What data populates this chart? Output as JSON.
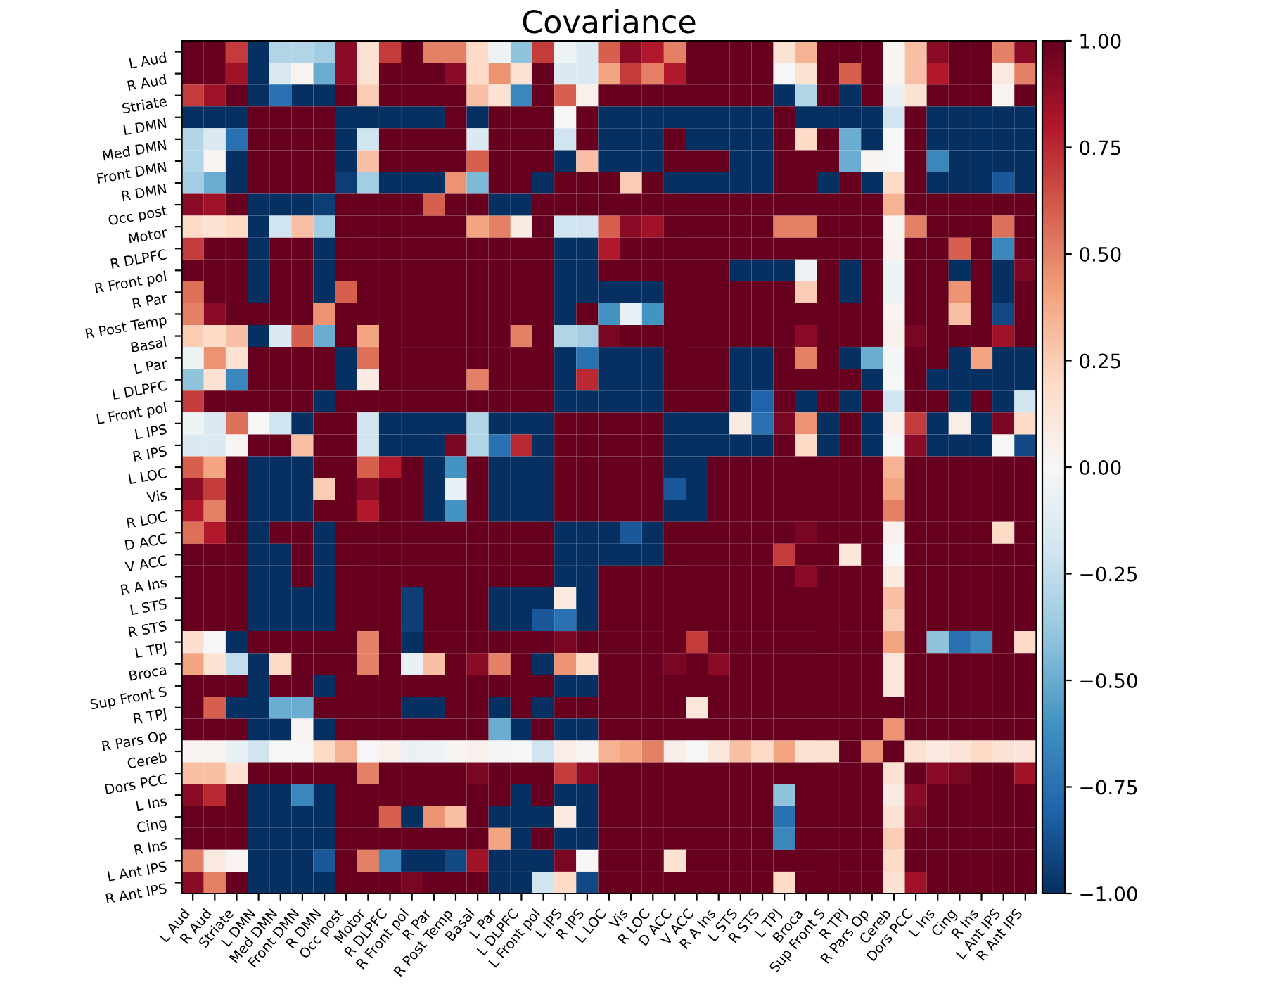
{
  "chart_data": {
    "type": "heatmap",
    "title": "Covariance",
    "categories": [
      "L Aud",
      "R Aud",
      "Striate",
      "L DMN",
      "Med DMN",
      "Front DMN",
      "R DMN",
      "Occ post",
      "Motor",
      "R DLPFC",
      "R Front pol",
      "R Par",
      "R Post Temp",
      "Basal",
      "L Par",
      "L DLPFC",
      "L Front pol",
      "L IPS",
      "R IPS",
      "L LOC",
      "Vis",
      "R LOC",
      "D ACC",
      "V ACC",
      "R A Ins",
      "L STS",
      "R STS",
      "L TPJ",
      "Broca",
      "Sup Front S",
      "R TPJ",
      "R Pars Op",
      "Cereb",
      "Dors PCC",
      "L Ins",
      "Cing",
      "R Ins",
      "L Ant IPS",
      "R Ant IPS"
    ],
    "y_categories": [
      "L Aud",
      "R Aud",
      "Striate",
      "L DMN",
      "Med DMN",
      "Front DMN",
      "R DMN",
      "Occ post",
      "Motor",
      "R DLPFC",
      "R Front pol",
      "R Par",
      "R Post Temp",
      "Basal",
      "L Par",
      "L DLPFC",
      "L Front pol",
      "L IPS",
      "R IPS",
      "L LOC",
      "Vis",
      "R LOC",
      "D ACC",
      "V ACC",
      "R A Ins",
      "L STS",
      "R STS",
      "L TPJ",
      "Broca",
      "Sup Front S",
      "R TPJ",
      "R Pars Op",
      "Cereb",
      "Dors PCC",
      "L Ins",
      "Cing",
      "R Ins",
      "L Ant IPS",
      "R Ant IPS"
    ],
    "cells": [
      [
        1,
        1,
        0.7,
        -1,
        -0.3,
        -0.3,
        -0.35,
        0.9,
        0.15,
        0.7,
        1,
        0.5,
        0.5,
        0.2,
        -0.05,
        -0.4,
        0.7,
        -0.05,
        -0.15,
        0.6,
        0.9,
        0.8,
        0.5,
        1,
        1,
        1,
        1,
        0.15,
        0.35,
        1,
        1,
        1,
        0.02,
        0.3,
        0.9,
        1,
        1,
        0.5,
        0.9
      ],
      [
        1,
        1,
        0.85,
        -1,
        -0.15,
        0.03,
        -0.5,
        0.9,
        0.15,
        1,
        1,
        1,
        0.9,
        0.2,
        0.45,
        0.15,
        1,
        -0.15,
        -0.15,
        0.4,
        0.7,
        0.5,
        0.8,
        1,
        1,
        1,
        1,
        0,
        0.15,
        1,
        0.6,
        1,
        0.02,
        0.3,
        0.8,
        1,
        1,
        0.1,
        0.5
      ],
      [
        0.7,
        0.85,
        1,
        -1,
        -0.75,
        -1,
        -1,
        1,
        0.25,
        1,
        1,
        1,
        1,
        0.3,
        0.15,
        -0.65,
        1,
        0.6,
        0.05,
        1,
        1,
        1,
        1,
        1,
        1,
        1,
        1,
        -1,
        -0.3,
        1,
        -1,
        1,
        -0.07,
        0.15,
        1,
        1,
        1,
        0.03,
        1
      ],
      [
        -1,
        -1,
        -1,
        1,
        1,
        1,
        1,
        -1,
        -1,
        -1,
        -1,
        -1,
        1,
        -1,
        1,
        1,
        1,
        0,
        1,
        -1,
        -1,
        -1,
        -1,
        -1,
        -1,
        -1,
        -1,
        1,
        -1,
        -1,
        -1,
        -1,
        -0.2,
        1,
        -1,
        -1,
        -1,
        -1,
        -1
      ],
      [
        -0.3,
        -0.15,
        -0.75,
        1,
        1,
        1,
        1,
        -1,
        -0.2,
        1,
        1,
        1,
        1,
        -0.15,
        1,
        1,
        1,
        -0.2,
        1,
        -1,
        -1,
        -1,
        1,
        -1,
        -1,
        -1,
        -1,
        1,
        0.2,
        1,
        -0.5,
        -1,
        0,
        1,
        -1,
        -1,
        -1,
        -1,
        -1
      ],
      [
        -0.3,
        0.03,
        -1,
        1,
        1,
        1,
        1,
        -1,
        0.3,
        1,
        1,
        1,
        1,
        0.6,
        1,
        1,
        1,
        -1,
        0.3,
        -1,
        -1,
        -1,
        1,
        1,
        1,
        -1,
        -1,
        1,
        1,
        1,
        -0.5,
        0.02,
        0,
        1,
        -0.65,
        -1,
        -1,
        -1,
        -1
      ],
      [
        -0.35,
        -0.5,
        -1,
        1,
        1,
        1,
        1,
        -0.95,
        -0.35,
        -1,
        -1,
        -1,
        0.45,
        -0.45,
        1,
        1,
        -1,
        1,
        1,
        1,
        0.25,
        1,
        -1,
        -1,
        -1,
        -1,
        -1,
        1,
        1,
        -1,
        1,
        -1,
        0.2,
        1,
        -1,
        -1,
        -1,
        -0.85,
        -1
      ],
      [
        0.9,
        0.85,
        1,
        -1,
        -1,
        -1,
        -0.95,
        1,
        1,
        1,
        1,
        0.6,
        1,
        1,
        -1,
        -1,
        1,
        1,
        1,
        1,
        1,
        1,
        1,
        1,
        1,
        1,
        1,
        1,
        1,
        1,
        1,
        1,
        0.35,
        1,
        1,
        1,
        1,
        1,
        1
      ],
      [
        0.2,
        0.15,
        0.2,
        -1,
        -0.2,
        0.3,
        -0.35,
        1,
        1,
        1,
        1,
        1,
        1,
        0.4,
        0.5,
        0.08,
        1,
        -0.2,
        -0.2,
        0.6,
        0.9,
        0.85,
        1,
        1,
        1,
        1,
        1,
        0.5,
        0.5,
        1,
        1,
        1,
        0.03,
        0.5,
        1,
        1,
        1,
        0.55,
        1
      ],
      [
        0.7,
        1,
        1,
        -1,
        1,
        1,
        -1,
        1,
        1,
        1,
        1,
        1,
        1,
        1,
        1,
        1,
        1,
        -1,
        -1,
        0.8,
        1,
        1,
        1,
        1,
        1,
        1,
        1,
        1,
        1,
        1,
        1,
        1,
        0.05,
        1,
        1,
        0.6,
        1,
        -0.65,
        1
      ],
      [
        1,
        1,
        1,
        -1,
        1,
        1,
        -1,
        1,
        1,
        1,
        1,
        1,
        1,
        1,
        1,
        1,
        1,
        -1,
        -1,
        1,
        1,
        1,
        1,
        1,
        1,
        -1,
        -1,
        -1,
        -0.05,
        1,
        -1,
        1,
        -0.05,
        1,
        1,
        -1,
        1,
        -1,
        0.95
      ],
      [
        0.55,
        1,
        1,
        -1,
        1,
        1,
        -1,
        0.6,
        1,
        1,
        1,
        1,
        1,
        1,
        1,
        1,
        1,
        -1,
        -1,
        -1,
        -1,
        -1,
        1,
        1,
        1,
        1,
        1,
        1,
        0.25,
        1,
        -1,
        1,
        -0.05,
        1,
        1,
        0.45,
        1,
        -1,
        1
      ],
      [
        0.5,
        0.9,
        1,
        1,
        1,
        1,
        0.45,
        1,
        1,
        1,
        1,
        1,
        1,
        1,
        1,
        1,
        1,
        -1,
        1,
        -0.6,
        -0.08,
        -0.6,
        1,
        1,
        1,
        1,
        1,
        1,
        1,
        1,
        1,
        1,
        0.03,
        1,
        1,
        0.3,
        1,
        -0.9,
        1
      ],
      [
        0.25,
        0.2,
        0.3,
        -1,
        -0.15,
        0.6,
        -0.5,
        1,
        0.4,
        1,
        1,
        1,
        1,
        1,
        1,
        0.5,
        1,
        -0.3,
        -0.35,
        0.95,
        1,
        1,
        1,
        1,
        1,
        1,
        1,
        1,
        0.9,
        1,
        1,
        1,
        0.05,
        0.95,
        1,
        1,
        1,
        0.85,
        1
      ],
      [
        -0.05,
        0.45,
        0.15,
        1,
        1,
        1,
        1,
        -1,
        0.55,
        1,
        1,
        1,
        1,
        1,
        1,
        1,
        1,
        -1,
        -0.75,
        -1,
        -1,
        -1,
        1,
        1,
        1,
        -1,
        -1,
        1,
        0.5,
        1,
        -1,
        -0.5,
        -0.02,
        1,
        1,
        -1,
        0.4,
        -1,
        -1
      ],
      [
        -0.4,
        0.15,
        -0.65,
        1,
        1,
        1,
        1,
        -1,
        0.08,
        1,
        1,
        1,
        1,
        0.5,
        1,
        1,
        1,
        -1,
        0.75,
        -1,
        -1,
        -1,
        1,
        1,
        1,
        -1,
        -1,
        1,
        1,
        1,
        1,
        -1,
        0,
        1,
        -1,
        -1,
        -1,
        -1,
        -1
      ],
      [
        0.7,
        1,
        1,
        1,
        1,
        1,
        -1,
        1,
        1,
        1,
        1,
        1,
        1,
        1,
        1,
        1,
        1,
        -1,
        -1,
        -1,
        -1,
        -1,
        1,
        1,
        1,
        -1,
        -0.8,
        1,
        -1,
        1,
        -1,
        1,
        -0.2,
        1,
        1,
        -1,
        1,
        -1,
        -0.2
      ],
      [
        -0.05,
        -0.15,
        0.55,
        0,
        -0.2,
        -1,
        1,
        1,
        -0.2,
        -1,
        -1,
        -1,
        -1,
        -0.3,
        -1,
        -1,
        -1,
        1,
        1,
        1,
        1,
        1,
        -1,
        -1,
        -1,
        0.08,
        -0.75,
        0.95,
        0.45,
        -1,
        1,
        -1,
        0.05,
        0.7,
        -1,
        0.07,
        -1,
        0.95,
        0.2
      ],
      [
        -0.15,
        -0.15,
        0.02,
        1,
        1,
        0.3,
        1,
        1,
        -0.2,
        -1,
        -1,
        -1,
        0.95,
        -0.3,
        -0.75,
        0.75,
        -1,
        1,
        1,
        1,
        1,
        1,
        -1,
        -1,
        -1,
        -1,
        -1,
        1,
        0.2,
        -1,
        1,
        -1,
        0,
        0.9,
        -1,
        -1,
        -1,
        0,
        -0.9
      ],
      [
        0.6,
        0.4,
        1,
        -1,
        -1,
        -1,
        1,
        1,
        0.6,
        0.8,
        1,
        -1,
        -0.6,
        1,
        -1,
        -1,
        -1,
        1,
        1,
        1,
        1,
        1,
        -1,
        -1,
        1,
        1,
        1,
        1,
        1,
        1,
        1,
        1,
        0.35,
        1,
        1,
        1,
        1,
        1,
        1
      ],
      [
        0.9,
        0.7,
        1,
        -1,
        -1,
        -1,
        0.25,
        1,
        0.9,
        1,
        1,
        -1,
        -0.08,
        1,
        -1,
        -1,
        -1,
        1,
        1,
        1,
        1,
        1,
        -0.85,
        -1,
        1,
        1,
        1,
        1,
        1,
        1,
        1,
        1,
        0.4,
        1,
        1,
        1,
        1,
        1,
        1
      ],
      [
        0.8,
        0.5,
        1,
        -1,
        -1,
        -1,
        1,
        1,
        0.8,
        1,
        1,
        -1,
        -0.6,
        1,
        -1,
        -1,
        -1,
        1,
        1,
        1,
        1,
        1,
        -1,
        -1,
        1,
        1,
        1,
        1,
        1,
        1,
        1,
        1,
        0.5,
        1,
        1,
        1,
        1,
        1,
        1
      ],
      [
        0.55,
        0.8,
        1,
        -1,
        1,
        1,
        -1,
        1,
        1,
        1,
        1,
        1,
        1,
        1,
        1,
        1,
        1,
        -1,
        -1,
        -1,
        -0.85,
        -1,
        1,
        1,
        1,
        1,
        1,
        1,
        0.95,
        1,
        1,
        1,
        0.05,
        1,
        1,
        1,
        1,
        0.2,
        1
      ],
      [
        1,
        1,
        1,
        -1,
        -1,
        1,
        -1,
        1,
        1,
        1,
        1,
        1,
        1,
        1,
        1,
        1,
        1,
        -1,
        -1,
        -1,
        -1,
        -1,
        1,
        1,
        1,
        1,
        1,
        0.7,
        1,
        1,
        0.12,
        1,
        0,
        1,
        1,
        1,
        1,
        1,
        1
      ],
      [
        1,
        1,
        1,
        -1,
        -1,
        1,
        -1,
        1,
        1,
        1,
        1,
        1,
        1,
        1,
        1,
        1,
        1,
        -1,
        -1,
        1,
        1,
        1,
        1,
        1,
        1,
        1,
        1,
        1,
        0.9,
        1,
        1,
        1,
        0.1,
        1,
        1,
        1,
        1,
        1,
        1
      ],
      [
        1,
        1,
        1,
        -1,
        -1,
        -1,
        -1,
        1,
        1,
        1,
        -0.95,
        1,
        1,
        1,
        -1,
        -1,
        -1,
        0.1,
        -1,
        1,
        1,
        1,
        1,
        1,
        1,
        1,
        1,
        1,
        1,
        1,
        1,
        1,
        0.3,
        1,
        1,
        1,
        1,
        1,
        1
      ],
      [
        1,
        1,
        1,
        -1,
        -1,
        -1,
        -1,
        1,
        1,
        1,
        -0.95,
        1,
        1,
        1,
        -1,
        -1,
        -0.85,
        -0.75,
        -1,
        1,
        1,
        1,
        1,
        1,
        1,
        1,
        1,
        1,
        1,
        1,
        1,
        1,
        0.25,
        1,
        1,
        1,
        1,
        1,
        1
      ],
      [
        0.17,
        0,
        -1,
        1,
        1,
        1,
        1,
        1,
        0.5,
        1,
        -1,
        1,
        1,
        1,
        1,
        1,
        1,
        0.95,
        1,
        1,
        1,
        1,
        1,
        0.7,
        1,
        1,
        1,
        1,
        1,
        1,
        1,
        1,
        0.4,
        1,
        -0.4,
        -0.75,
        -0.65,
        1,
        0.2
      ],
      [
        0.4,
        0.15,
        -0.25,
        -1,
        0.2,
        1,
        1,
        1,
        0.5,
        1,
        -0.07,
        0.3,
        1,
        0.9,
        0.5,
        1,
        -1,
        0.45,
        0.2,
        1,
        1,
        1,
        0.95,
        1,
        0.9,
        1,
        1,
        1,
        1,
        1,
        1,
        1,
        0.12,
        1,
        1,
        1,
        1,
        1,
        1
      ],
      [
        1,
        1,
        1,
        -1,
        1,
        1,
        -1,
        1,
        1,
        1,
        1,
        1,
        1,
        1,
        1,
        1,
        1,
        -1,
        -1,
        1,
        1,
        1,
        1,
        1,
        1,
        1,
        1,
        1,
        1,
        1,
        1,
        1,
        0.12,
        1,
        1,
        1,
        1,
        1,
        1
      ],
      [
        1,
        0.6,
        -1,
        -1,
        -0.5,
        -0.5,
        1,
        1,
        1,
        1,
        -1,
        -1,
        1,
        1,
        -1,
        1,
        -1,
        1,
        1,
        1,
        1,
        1,
        1,
        0.12,
        1,
        1,
        1,
        1,
        1,
        1,
        1,
        1,
        1,
        1,
        1,
        1,
        1,
        1,
        1
      ],
      [
        1,
        1,
        1,
        -1,
        -1,
        0.02,
        -1,
        1,
        1,
        1,
        1,
        1,
        1,
        1,
        -0.5,
        -1,
        1,
        -1,
        -1,
        1,
        1,
        1,
        1,
        1,
        1,
        1,
        1,
        1,
        1,
        1,
        1,
        1,
        0.45,
        1,
        1,
        1,
        1,
        1,
        1
      ],
      [
        0.03,
        0.03,
        -0.08,
        -0.2,
        0,
        0,
        0.2,
        0.35,
        0,
        0.05,
        -0.07,
        -0.05,
        0.02,
        0.05,
        -0.02,
        0,
        -0.2,
        0.07,
        0.03,
        0.35,
        0.4,
        0.5,
        0.07,
        0,
        0.12,
        0.3,
        0.2,
        0.4,
        0.15,
        0.15,
        1,
        0.45,
        1,
        0.15,
        0.1,
        0.13,
        0.2,
        0.15,
        0.13
      ],
      [
        0.3,
        0.3,
        0.15,
        1,
        1,
        1,
        1,
        1,
        0.5,
        1,
        1,
        1,
        1,
        0.95,
        1,
        1,
        1,
        0.7,
        0.9,
        1,
        1,
        1,
        1,
        1,
        1,
        1,
        1,
        1,
        1,
        1,
        1,
        1,
        0.15,
        1,
        0.9,
        0.95,
        1,
        1,
        0.85
      ],
      [
        0.9,
        0.75,
        1,
        -1,
        -1,
        -0.65,
        -1,
        1,
        1,
        1,
        1,
        1,
        1,
        1,
        1,
        -1,
        1,
        -1,
        -1,
        1,
        1,
        1,
        1,
        1,
        1,
        1,
        1,
        -0.4,
        1,
        1,
        1,
        1,
        0.08,
        0.9,
        1,
        1,
        1,
        1,
        1
      ],
      [
        1,
        1,
        1,
        -1,
        -1,
        -1,
        -1,
        1,
        1,
        0.6,
        -1,
        0.45,
        0.3,
        1,
        -1,
        -1,
        -1,
        0.1,
        -1,
        1,
        1,
        1,
        1,
        1,
        1,
        1,
        1,
        -0.75,
        1,
        1,
        1,
        1,
        0.15,
        0.95,
        1,
        1,
        1,
        1,
        1
      ],
      [
        1,
        1,
        1,
        -1,
        -1,
        -1,
        -1,
        1,
        1,
        1,
        1,
        1,
        1,
        1,
        0.4,
        -1,
        1,
        -1,
        -1,
        1,
        1,
        1,
        1,
        1,
        1,
        1,
        1,
        -0.65,
        1,
        1,
        1,
        1,
        0.25,
        1,
        1,
        1,
        1,
        1,
        1
      ],
      [
        0.5,
        0.1,
        0.03,
        -1,
        -1,
        -1,
        -0.85,
        1,
        0.5,
        -0.65,
        -1,
        -1,
        -0.9,
        0.85,
        -1,
        -1,
        -1,
        0.95,
        0,
        1,
        1,
        1,
        0.15,
        1,
        1,
        1,
        1,
        1,
        1,
        1,
        1,
        1,
        0.2,
        1,
        1,
        1,
        1,
        1,
        1
      ],
      [
        0.9,
        0.5,
        1,
        -1,
        -1,
        -1,
        -1,
        1,
        1,
        1,
        0.95,
        1,
        1,
        1,
        -1,
        -1,
        -0.2,
        0.2,
        -0.9,
        1,
        1,
        1,
        1,
        1,
        1,
        1,
        1,
        0.2,
        1,
        1,
        1,
        1,
        0.15,
        0.85,
        1,
        1,
        1,
        1,
        1
      ]
    ],
    "clim": [
      -1,
      1
    ],
    "cticks": [
      {
        "value": -1,
        "label": "−1.00"
      },
      {
        "value": -0.75,
        "label": "−0.75"
      },
      {
        "value": -0.5,
        "label": "−0.50"
      },
      {
        "value": -0.25,
        "label": "−0.25"
      },
      {
        "value": 0,
        "label": "0.00"
      },
      {
        "value": 0.25,
        "label": "0.25"
      },
      {
        "value": 0.5,
        "label": "0.50"
      },
      {
        "value": 0.75,
        "label": "0.75"
      },
      {
        "value": 1,
        "label": "1.00"
      }
    ]
  }
}
